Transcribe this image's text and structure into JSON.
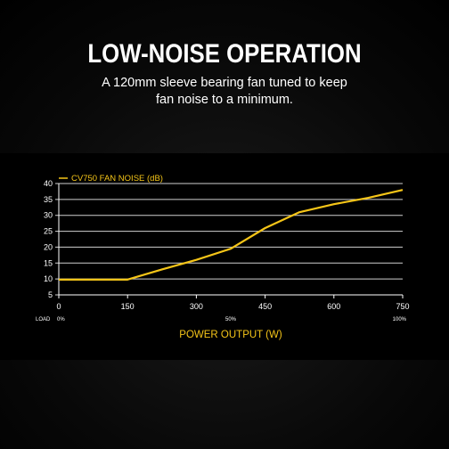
{
  "header": {
    "title": "LOW-NOISE OPERATION",
    "subtitle_line1": "A 120mm sleeve bearing fan tuned to keep",
    "subtitle_line2": "fan noise to a minimum."
  },
  "colors": {
    "accent": "#f5c518",
    "text": "#ffffff",
    "background": "#000000"
  },
  "chart_data": {
    "type": "line",
    "title": "CV750 FAN NOISE (dB)",
    "xlabel": "POWER OUTPUT (W)",
    "ylabel": "",
    "xlim": [
      0,
      750
    ],
    "ylim": [
      5,
      40
    ],
    "x_ticks": [
      "0",
      "150",
      "300",
      "450",
      "600",
      "750"
    ],
    "x_tick_values": [
      0,
      150,
      300,
      450,
      600,
      750
    ],
    "y_ticks": [
      "5",
      "10",
      "15",
      "20",
      "25",
      "30",
      "35",
      "40"
    ],
    "y_tick_values": [
      5,
      10,
      15,
      20,
      25,
      30,
      35,
      40
    ],
    "load_label": "LOAD",
    "load_ticks": [
      {
        "label": "0%",
        "x": 0
      },
      {
        "label": "50%",
        "x": 375
      },
      {
        "label": "100%",
        "x": 750
      }
    ],
    "grid": "horizontal",
    "series": [
      {
        "name": "",
        "x": [
          0,
          150,
          225,
          300,
          375,
          450,
          525,
          600,
          675,
          750
        ],
        "values": [
          9.8,
          9.8,
          13,
          16,
          19.5,
          26,
          31,
          33.5,
          35.5,
          38
        ]
      }
    ]
  }
}
